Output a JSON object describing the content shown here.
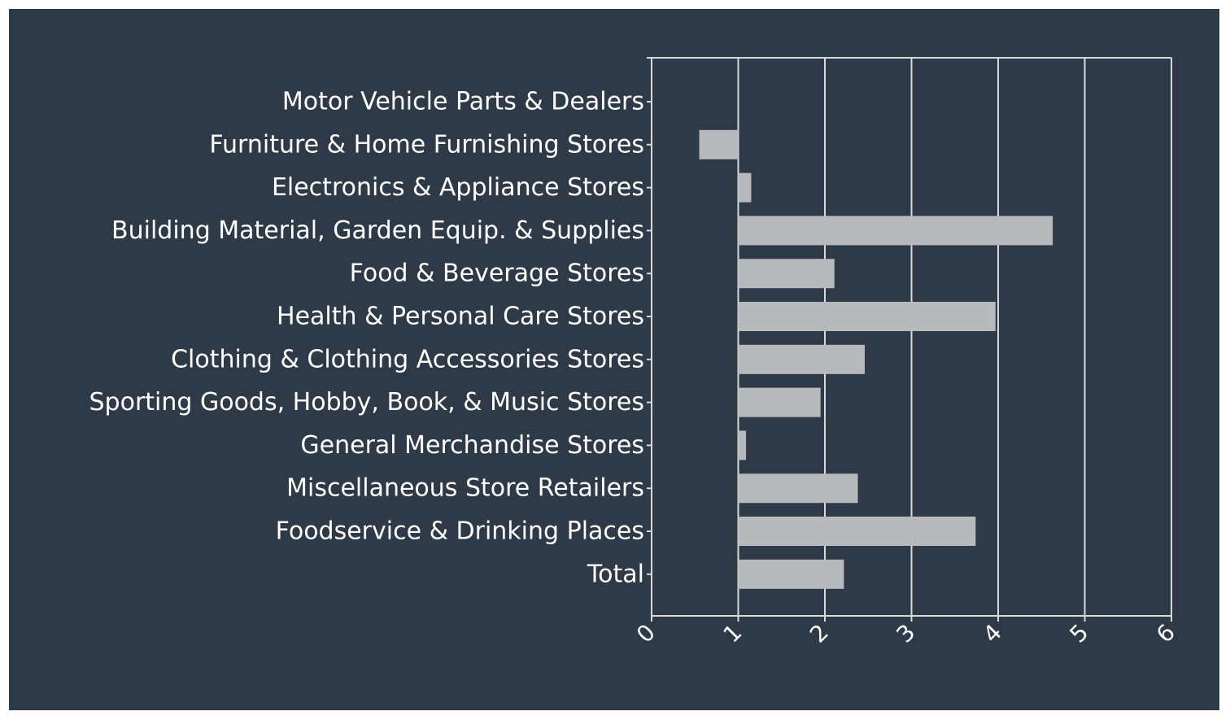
{
  "colors": {
    "background": "#2e3a47",
    "bar": "#b8b9bc",
    "grid": "#d9d9d9",
    "text": "#ffffff"
  },
  "chart_data": {
    "type": "bar",
    "orientation": "horizontal",
    "categories": [
      "Motor Vehicle Parts & Dealers",
      "Furniture & Home Furnishing Stores",
      "Electronics & Appliance Stores",
      "Building Material, Garden Equip. & Supplies",
      "Food & Beverage Stores",
      "Health & Personal Care Stores",
      "Clothing & Clothing Accessories Stores",
      "Sporting Goods, Hobby, Book, & Music Stores",
      "General Merchandise Stores",
      "Miscellaneous Store Retailers",
      "Foodservice & Drinking Places",
      "Total"
    ],
    "values": [
      1.0,
      0.55,
      1.15,
      4.63,
      2.11,
      3.97,
      2.46,
      1.95,
      1.09,
      2.38,
      3.74,
      2.22
    ],
    "baseline": 1,
    "xlim": [
      0,
      6
    ],
    "xticks": [
      "0",
      "1",
      "2",
      "3",
      "4",
      "5",
      "6"
    ],
    "grid": true,
    "legend": "none"
  }
}
